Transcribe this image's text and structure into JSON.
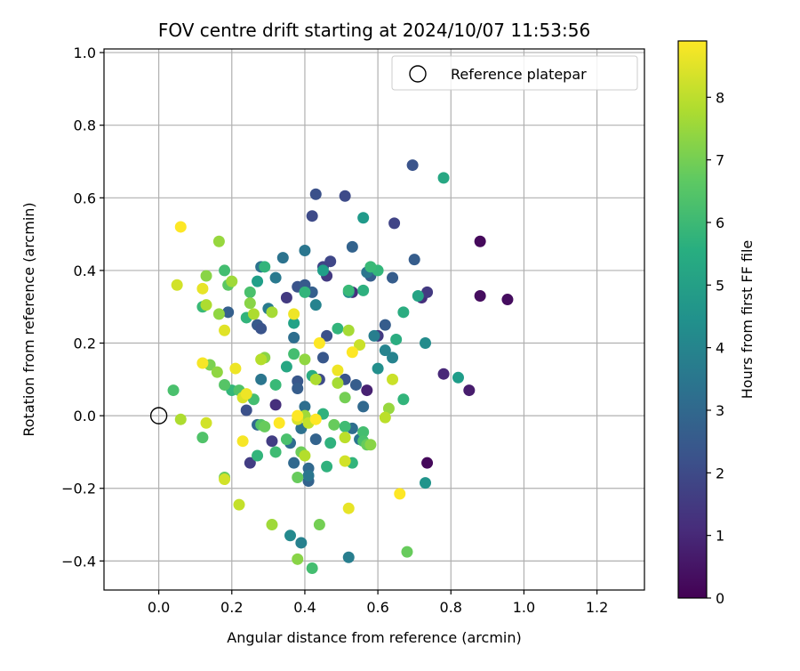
{
  "chart_data": {
    "type": "scatter",
    "title": "FOV centre drift starting at 2024/10/07 11:53:56",
    "xlabel": "Angular distance from reference (arcmin)",
    "ylabel": "Rotation from reference (arcmin)",
    "xlim": [
      -0.15,
      1.33
    ],
    "ylim": [
      -0.48,
      1.01
    ],
    "xticks": [
      "0.0",
      "0.2",
      "0.4",
      "0.6",
      "0.8",
      "1.0",
      "1.2"
    ],
    "yticks": [
      "−0.4",
      "−0.2",
      "0.0",
      "0.2",
      "0.4",
      "0.6",
      "0.8",
      "1.0"
    ],
    "grid": true,
    "legend": {
      "placement": "top-right",
      "label": "Reference platepar"
    },
    "reference_point": {
      "x": 0.0,
      "y": 0.0
    },
    "colorbar": {
      "label": "Hours from first FF file",
      "range": [
        0,
        8.9
      ],
      "ticks": [
        "0",
        "1",
        "2",
        "3",
        "4",
        "5",
        "6",
        "7",
        "8"
      ],
      "colormap": "viridis"
    },
    "points": [
      {
        "x": 0.88,
        "y": 0.48,
        "h": 0.2
      },
      {
        "x": 0.88,
        "y": 0.33,
        "h": 0.3
      },
      {
        "x": 0.955,
        "y": 0.32,
        "h": 0.3
      },
      {
        "x": 0.735,
        "y": -0.13,
        "h": 0.2
      },
      {
        "x": 0.85,
        "y": 0.07,
        "h": 0.7
      },
      {
        "x": 0.78,
        "y": 0.115,
        "h": 1.0
      },
      {
        "x": 0.72,
        "y": 0.325,
        "h": 1.2
      },
      {
        "x": 0.735,
        "y": 0.34,
        "h": 1.5
      },
      {
        "x": 0.645,
        "y": 0.53,
        "h": 1.8
      },
      {
        "x": 0.695,
        "y": 0.69,
        "h": 2.3
      },
      {
        "x": 0.7,
        "y": 0.43,
        "h": 2.6
      },
      {
        "x": 0.57,
        "y": 0.07,
        "h": 0.8
      },
      {
        "x": 0.6,
        "y": 0.22,
        "h": 1.5
      },
      {
        "x": 0.53,
        "y": 0.34,
        "h": 1.2
      },
      {
        "x": 0.43,
        "y": 0.61,
        "h": 2.2
      },
      {
        "x": 0.51,
        "y": 0.605,
        "h": 2.0
      },
      {
        "x": 0.42,
        "y": 0.55,
        "h": 2.0
      },
      {
        "x": 0.47,
        "y": 0.425,
        "h": 1.9
      },
      {
        "x": 0.45,
        "y": 0.41,
        "h": 1.8
      },
      {
        "x": 0.46,
        "y": 0.385,
        "h": 1.5
      },
      {
        "x": 0.35,
        "y": 0.325,
        "h": 1.5
      },
      {
        "x": 0.38,
        "y": 0.355,
        "h": 2.3
      },
      {
        "x": 0.4,
        "y": 0.36,
        "h": 2.5
      },
      {
        "x": 0.42,
        "y": 0.34,
        "h": 2.7
      },
      {
        "x": 0.53,
        "y": 0.465,
        "h": 2.8
      },
      {
        "x": 0.34,
        "y": 0.435,
        "h": 3.4
      },
      {
        "x": 0.4,
        "y": 0.455,
        "h": 3.5
      },
      {
        "x": 0.3,
        "y": 0.295,
        "h": 3.7
      },
      {
        "x": 0.32,
        "y": 0.38,
        "h": 3.6
      },
      {
        "x": 0.28,
        "y": 0.41,
        "h": 3.4
      },
      {
        "x": 0.19,
        "y": 0.285,
        "h": 2.7
      },
      {
        "x": 0.27,
        "y": 0.25,
        "h": 2.5
      },
      {
        "x": 0.28,
        "y": 0.24,
        "h": 2.3
      },
      {
        "x": 0.32,
        "y": 0.03,
        "h": 1.2
      },
      {
        "x": 0.24,
        "y": 0.015,
        "h": 2.2
      },
      {
        "x": 0.25,
        "y": -0.13,
        "h": 1.6
      },
      {
        "x": 0.31,
        "y": -0.07,
        "h": 1.6
      },
      {
        "x": 0.27,
        "y": -0.025,
        "h": 3.0
      },
      {
        "x": 0.28,
        "y": 0.1,
        "h": 3.5
      },
      {
        "x": 0.36,
        "y": -0.075,
        "h": 3.2
      },
      {
        "x": 0.37,
        "y": -0.13,
        "h": 3.0
      },
      {
        "x": 0.38,
        "y": 0.095,
        "h": 2.4
      },
      {
        "x": 0.38,
        "y": 0.075,
        "h": 2.6
      },
      {
        "x": 0.44,
        "y": 0.1,
        "h": 2.0
      },
      {
        "x": 0.43,
        "y": -0.065,
        "h": 2.8
      },
      {
        "x": 0.41,
        "y": -0.145,
        "h": 3.0
      },
      {
        "x": 0.41,
        "y": -0.18,
        "h": 2.8
      },
      {
        "x": 0.41,
        "y": -0.165,
        "h": 3.5
      },
      {
        "x": 0.39,
        "y": -0.035,
        "h": 3.3
      },
      {
        "x": 0.37,
        "y": 0.215,
        "h": 3.2
      },
      {
        "x": 0.4,
        "y": 0.025,
        "h": 3.2
      },
      {
        "x": 0.45,
        "y": 0.16,
        "h": 2.4
      },
      {
        "x": 0.46,
        "y": 0.22,
        "h": 2.2
      },
      {
        "x": 0.51,
        "y": 0.1,
        "h": 2.3
      },
      {
        "x": 0.54,
        "y": 0.085,
        "h": 2.6
      },
      {
        "x": 0.56,
        "y": 0.025,
        "h": 3.0
      },
      {
        "x": 0.53,
        "y": -0.035,
        "h": 3.2
      },
      {
        "x": 0.55,
        "y": -0.065,
        "h": 3.5
      },
      {
        "x": 0.62,
        "y": 0.25,
        "h": 2.6
      },
      {
        "x": 0.58,
        "y": 0.385,
        "h": 2.6
      },
      {
        "x": 0.64,
        "y": 0.38,
        "h": 2.6
      },
      {
        "x": 0.57,
        "y": 0.395,
        "h": 3.5
      },
      {
        "x": 0.59,
        "y": 0.22,
        "h": 3.8
      },
      {
        "x": 0.62,
        "y": 0.18,
        "h": 4.0
      },
      {
        "x": 0.64,
        "y": 0.16,
        "h": 4.0
      },
      {
        "x": 0.6,
        "y": 0.13,
        "h": 4.4
      },
      {
        "x": 0.52,
        "y": -0.39,
        "h": 3.8
      },
      {
        "x": 0.39,
        "y": -0.35,
        "h": 3.9
      },
      {
        "x": 0.36,
        "y": -0.33,
        "h": 4.2
      },
      {
        "x": 0.52,
        "y": 0.34,
        "h": 4.4
      },
      {
        "x": 0.43,
        "y": 0.305,
        "h": 4.0
      },
      {
        "x": 0.56,
        "y": 0.545,
        "h": 4.8
      },
      {
        "x": 0.78,
        "y": 0.655,
        "h": 5.3
      },
      {
        "x": 0.73,
        "y": 0.2,
        "h": 4.3
      },
      {
        "x": 0.82,
        "y": 0.105,
        "h": 4.9
      },
      {
        "x": 0.73,
        "y": -0.185,
        "h": 4.6
      },
      {
        "x": 0.67,
        "y": 0.285,
        "h": 5.5
      },
      {
        "x": 0.71,
        "y": 0.33,
        "h": 5.2
      },
      {
        "x": 0.65,
        "y": 0.21,
        "h": 5.5
      },
      {
        "x": 0.6,
        "y": 0.4,
        "h": 5.9
      },
      {
        "x": 0.58,
        "y": 0.41,
        "h": 6.0
      },
      {
        "x": 0.56,
        "y": 0.345,
        "h": 5.6
      },
      {
        "x": 0.52,
        "y": 0.345,
        "h": 6.0
      },
      {
        "x": 0.49,
        "y": 0.24,
        "h": 5.8
      },
      {
        "x": 0.67,
        "y": 0.045,
        "h": 5.8
      },
      {
        "x": 0.56,
        "y": -0.045,
        "h": 6.2
      },
      {
        "x": 0.56,
        "y": -0.07,
        "h": 6.3
      },
      {
        "x": 0.46,
        "y": -0.14,
        "h": 5.7
      },
      {
        "x": 0.47,
        "y": -0.075,
        "h": 5.7
      },
      {
        "x": 0.42,
        "y": 0.11,
        "h": 5.5
      },
      {
        "x": 0.45,
        "y": 0.4,
        "h": 5.0
      },
      {
        "x": 0.4,
        "y": 0.34,
        "h": 5.8
      },
      {
        "x": 0.37,
        "y": 0.255,
        "h": 5.1
      },
      {
        "x": 0.35,
        "y": 0.135,
        "h": 5.3
      },
      {
        "x": 0.29,
        "y": 0.41,
        "h": 5.8
      },
      {
        "x": 0.27,
        "y": 0.37,
        "h": 5.0
      },
      {
        "x": 0.25,
        "y": 0.34,
        "h": 6.3
      },
      {
        "x": 0.18,
        "y": 0.4,
        "h": 6.2
      },
      {
        "x": 0.19,
        "y": 0.36,
        "h": 6.6
      },
      {
        "x": 0.2,
        "y": 0.07,
        "h": 5.9
      },
      {
        "x": 0.18,
        "y": 0.085,
        "h": 6.5
      },
      {
        "x": 0.22,
        "y": 0.07,
        "h": 6.4
      },
      {
        "x": 0.24,
        "y": 0.27,
        "h": 5.8
      },
      {
        "x": 0.12,
        "y": 0.3,
        "h": 6.0
      },
      {
        "x": 0.26,
        "y": 0.045,
        "h": 6.2
      },
      {
        "x": 0.27,
        "y": -0.11,
        "h": 5.8
      },
      {
        "x": 0.32,
        "y": -0.1,
        "h": 6.1
      },
      {
        "x": 0.35,
        "y": -0.065,
        "h": 6.3
      },
      {
        "x": 0.28,
        "y": -0.025,
        "h": 6.5
      },
      {
        "x": 0.29,
        "y": -0.03,
        "h": 6.8
      },
      {
        "x": 0.32,
        "y": 0.085,
        "h": 6.0
      },
      {
        "x": 0.37,
        "y": 0.17,
        "h": 6.2
      },
      {
        "x": 0.38,
        "y": -0.17,
        "h": 6.8
      },
      {
        "x": 0.39,
        "y": -0.1,
        "h": 6.9
      },
      {
        "x": 0.48,
        "y": -0.025,
        "h": 6.8
      },
      {
        "x": 0.45,
        "y": 0.005,
        "h": 5.7
      },
      {
        "x": 0.51,
        "y": -0.03,
        "h": 6.1
      },
      {
        "x": 0.53,
        "y": -0.13,
        "h": 5.8
      },
      {
        "x": 0.57,
        "y": -0.08,
        "h": 6.8
      },
      {
        "x": 0.63,
        "y": 0.02,
        "h": 7.5
      },
      {
        "x": 0.04,
        "y": 0.07,
        "h": 6.3
      },
      {
        "x": 0.12,
        "y": -0.06,
        "h": 6.4
      },
      {
        "x": 0.42,
        "y": -0.42,
        "h": 6.2
      },
      {
        "x": 0.38,
        "y": -0.395,
        "h": 7.3
      },
      {
        "x": 0.68,
        "y": -0.375,
        "h": 6.8
      },
      {
        "x": 0.44,
        "y": -0.3,
        "h": 7.0
      },
      {
        "x": 0.31,
        "y": -0.3,
        "h": 7.6
      },
      {
        "x": 0.18,
        "y": -0.17,
        "h": 6.8
      },
      {
        "x": 0.14,
        "y": 0.14,
        "h": 7.1
      },
      {
        "x": 0.16,
        "y": 0.12,
        "h": 7.4
      },
      {
        "x": 0.13,
        "y": 0.385,
        "h": 7.3
      },
      {
        "x": 0.2,
        "y": 0.37,
        "h": 7.6
      },
      {
        "x": 0.165,
        "y": 0.28,
        "h": 7.4
      },
      {
        "x": 0.13,
        "y": 0.305,
        "h": 7.8
      },
      {
        "x": 0.165,
        "y": 0.48,
        "h": 7.5
      },
      {
        "x": 0.25,
        "y": 0.31,
        "h": 7.3
      },
      {
        "x": 0.26,
        "y": 0.28,
        "h": 7.8
      },
      {
        "x": 0.31,
        "y": 0.285,
        "h": 7.7
      },
      {
        "x": 0.29,
        "y": 0.16,
        "h": 7.3
      },
      {
        "x": 0.28,
        "y": 0.155,
        "h": 7.9
      },
      {
        "x": 0.4,
        "y": 0.155,
        "h": 7.4
      },
      {
        "x": 0.43,
        "y": 0.1,
        "h": 7.8
      },
      {
        "x": 0.49,
        "y": 0.09,
        "h": 7.7
      },
      {
        "x": 0.58,
        "y": -0.08,
        "h": 7.3
      },
      {
        "x": 0.51,
        "y": 0.05,
        "h": 7.0
      },
      {
        "x": 0.52,
        "y": 0.235,
        "h": 7.7
      },
      {
        "x": 0.55,
        "y": 0.195,
        "h": 8.2
      },
      {
        "x": 0.62,
        "y": -0.005,
        "h": 8.0
      },
      {
        "x": 0.64,
        "y": 0.1,
        "h": 8.2
      },
      {
        "x": 0.51,
        "y": -0.06,
        "h": 8.0
      },
      {
        "x": 0.51,
        "y": -0.125,
        "h": 8.3
      },
      {
        "x": 0.4,
        "y": -0.11,
        "h": 7.9
      },
      {
        "x": 0.4,
        "y": 0.0,
        "h": 7.6
      },
      {
        "x": 0.41,
        "y": -0.02,
        "h": 8.1
      },
      {
        "x": 0.38,
        "y": -0.01,
        "h": 8.4
      },
      {
        "x": 0.06,
        "y": -0.01,
        "h": 7.8
      },
      {
        "x": 0.13,
        "y": -0.02,
        "h": 8.3
      },
      {
        "x": 0.22,
        "y": -0.245,
        "h": 8.1
      },
      {
        "x": 0.18,
        "y": -0.175,
        "h": 8.3
      },
      {
        "x": 0.05,
        "y": 0.36,
        "h": 8.3
      },
      {
        "x": 0.12,
        "y": 0.35,
        "h": 8.6
      },
      {
        "x": 0.18,
        "y": 0.235,
        "h": 8.5
      },
      {
        "x": 0.21,
        "y": 0.13,
        "h": 8.7
      },
      {
        "x": 0.23,
        "y": 0.05,
        "h": 8.4
      },
      {
        "x": 0.24,
        "y": 0.06,
        "h": 8.7
      },
      {
        "x": 0.12,
        "y": 0.145,
        "h": 8.8
      },
      {
        "x": 0.06,
        "y": 0.52,
        "h": 8.9
      },
      {
        "x": 0.37,
        "y": 0.28,
        "h": 8.7
      },
      {
        "x": 0.38,
        "y": 0.0,
        "h": 8.9
      },
      {
        "x": 0.43,
        "y": -0.01,
        "h": 8.9
      },
      {
        "x": 0.33,
        "y": -0.02,
        "h": 8.9
      },
      {
        "x": 0.44,
        "y": 0.2,
        "h": 8.9
      },
      {
        "x": 0.53,
        "y": 0.175,
        "h": 8.9
      },
      {
        "x": 0.49,
        "y": 0.125,
        "h": 8.7
      },
      {
        "x": 0.52,
        "y": -0.255,
        "h": 8.6
      },
      {
        "x": 0.66,
        "y": -0.215,
        "h": 8.9
      },
      {
        "x": 0.23,
        "y": -0.07,
        "h": 8.8
      }
    ]
  }
}
